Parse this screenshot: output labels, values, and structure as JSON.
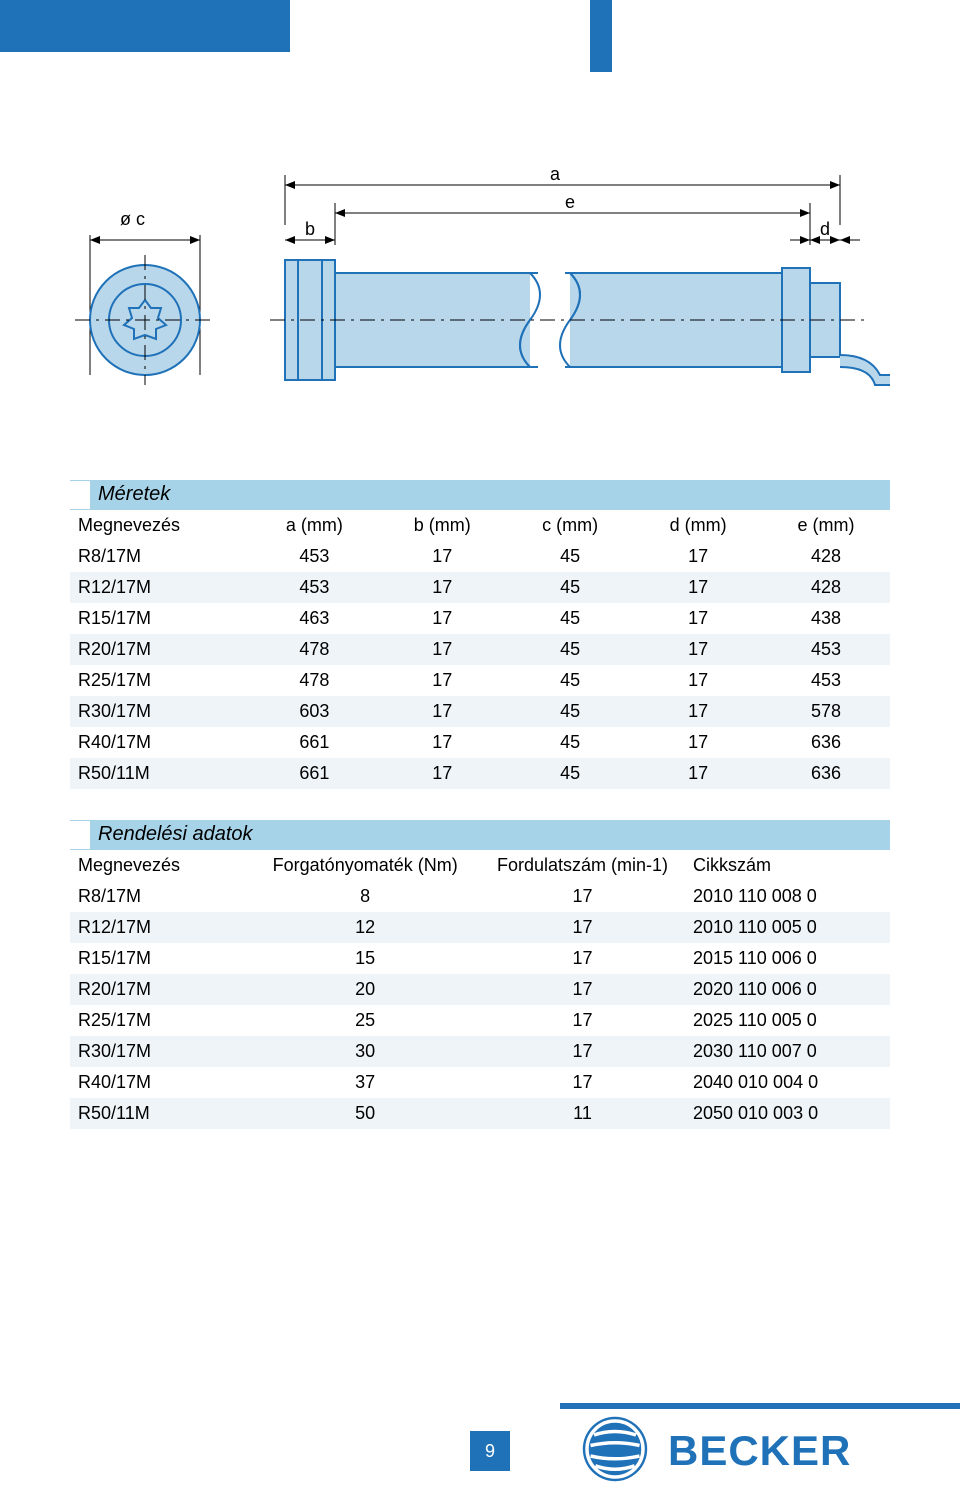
{
  "colors": {
    "brand_blue": "#1f71b8",
    "light_blue_fill": "#b9d7eb",
    "table_header_bg": "#a7d3e8",
    "row_alt_bg": "#eef4f8",
    "text": "#000000",
    "page_bg": "#ffffff"
  },
  "diagram": {
    "labels": {
      "a": "a",
      "b": "b",
      "c_diam": "ø c",
      "d": "d",
      "e": "e"
    }
  },
  "table_dimensions": {
    "title": "Méretek",
    "columns": [
      "Megnevezés",
      "a (mm)",
      "b (mm)",
      "c (mm)",
      "d (mm)",
      "e (mm)"
    ],
    "col_align": [
      "left",
      "center",
      "center",
      "center",
      "center",
      "center"
    ],
    "rows": [
      [
        "R8/17M",
        "453",
        "17",
        "45",
        "17",
        "428"
      ],
      [
        "R12/17M",
        "453",
        "17",
        "45",
        "17",
        "428"
      ],
      [
        "R15/17M",
        "463",
        "17",
        "45",
        "17",
        "438"
      ],
      [
        "R20/17M",
        "478",
        "17",
        "45",
        "17",
        "453"
      ],
      [
        "R25/17M",
        "478",
        "17",
        "45",
        "17",
        "453"
      ],
      [
        "R30/17M",
        "603",
        "17",
        "45",
        "17",
        "578"
      ],
      [
        "R40/17M",
        "661",
        "17",
        "45",
        "17",
        "636"
      ],
      [
        "R50/11M",
        "661",
        "17",
        "45",
        "17",
        "636"
      ]
    ]
  },
  "table_order": {
    "title": "Rendelési adatok",
    "columns": [
      "Megnevezés",
      "Forgatónyomaték (Nm)",
      "Fordulatszám (min-1)",
      "Cikkszám"
    ],
    "col_align": [
      "left",
      "center",
      "center",
      "left"
    ],
    "rows": [
      [
        "R8/17M",
        "8",
        "17",
        "2010 110 008 0"
      ],
      [
        "R12/17M",
        "12",
        "17",
        "2010 110 005 0"
      ],
      [
        "R15/17M",
        "15",
        "17",
        "2015 110 006 0"
      ],
      [
        "R20/17M",
        "20",
        "17",
        "2020 110 006 0"
      ],
      [
        "R25/17M",
        "25",
        "17",
        "2025 110 005 0"
      ],
      [
        "R30/17M",
        "30",
        "17",
        "2030 110 007 0"
      ],
      [
        "R40/17M",
        "37",
        "17",
        "2040 010 004 0"
      ],
      [
        "R50/11M",
        "50",
        "11",
        "2050 010 003 0"
      ]
    ]
  },
  "footer": {
    "page_number": "9",
    "brand": "BECKER"
  }
}
